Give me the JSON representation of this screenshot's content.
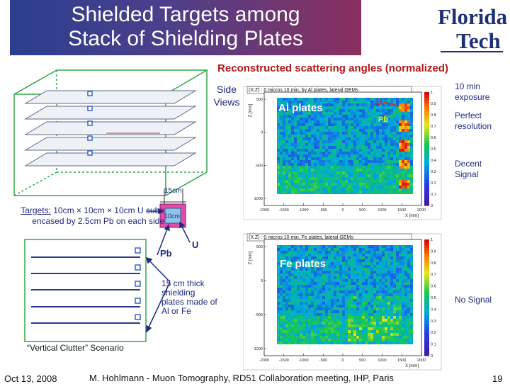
{
  "header": {
    "title_line1": "Shielded Targets among",
    "title_line2": "Stack of Shielding Plates",
    "logo_line1": "Florida",
    "logo_line2": "Tech"
  },
  "subtitle": "Reconstructed scattering angles (normalized)",
  "side_views": "Side Views",
  "notes": {
    "exposure": "10 min exposure",
    "resolution": "Perfect resolution",
    "decent": "Decent Signal",
    "nosignal": "No Signal"
  },
  "left": {
    "dim_15cm": "15cm",
    "dim_10cm": "10cm",
    "targets_label": "Targets:",
    "targets_rest": " 10cm × 10cm × 10cm U cube encased by 2.5cm Pb on each side",
    "pb_label": "Pb",
    "u_label": "U",
    "thick_note": "15 cm thick shielding plates made of Al or Fe",
    "clutter": "“Vertical Clutter” Scenario"
  },
  "plot_al": {
    "header": "(X,Z) : 0 micros 10 min, by Al plates, lateral GEMs",
    "label": "Al plates",
    "u_label": "U",
    "pb_label": "Pb",
    "ylabel": "Z [mm]",
    "xlabel": "X [mm]",
    "xticks": [
      "-2000",
      "-1500",
      "-1000",
      "-500",
      "0",
      "500",
      "1000",
      "1500",
      "2000"
    ],
    "yticks": [
      "500",
      "0",
      "-500",
      "-1000"
    ],
    "cticks": [
      "1",
      "0.9",
      "0.8",
      "0.7",
      "0.6",
      "0.5",
      "0.4",
      "0.3",
      "0.2",
      "0.1",
      "0"
    ]
  },
  "plot_fe": {
    "header": "(X,Z) : 0 micros 10 min, Fe plates, lateral GEMs",
    "label": "Fe plates",
    "ylabel": "Z [mm]",
    "xlabel": "X [mm]",
    "xticks": [
      "-2000",
      "-1500",
      "-1000",
      "-500",
      "0",
      "500",
      "1000",
      "1500",
      "2000"
    ],
    "yticks": [
      "500",
      "0",
      "-500",
      "-1000"
    ],
    "cticks": [
      "1",
      "0.9",
      "0.8",
      "0.7",
      "0.6",
      "0.5",
      "0.4",
      "0.3",
      "0.2",
      "0.1",
      "0"
    ]
  },
  "footer": {
    "date": "Oct 13, 2008",
    "text": "M. Hohlmann - Muon Tomography, RD51 Collaboration meeting, IHP, Paris",
    "page": "19"
  },
  "colors": {
    "navy": "#1f2a80",
    "red": "#b01818",
    "green_frame": "#2ea84a"
  }
}
